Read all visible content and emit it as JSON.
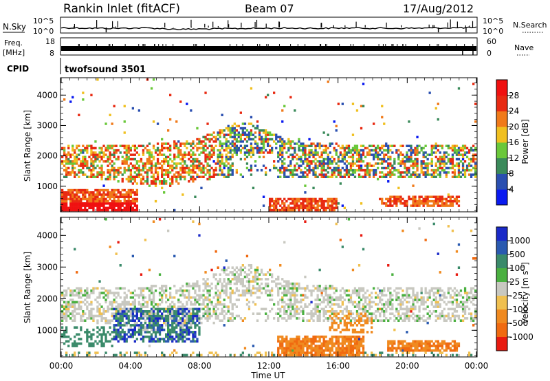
{
  "header": {
    "station": "Rankin Inlet (fitACF)",
    "beam": "Beam 07",
    "date": "17/Aug/2012"
  },
  "noise_panel": {
    "left_label": "N.Sky",
    "right_label": "N.Search",
    "left_ticks": [
      "10^5",
      "10^0"
    ],
    "right_ticks": [
      "10^5",
      "10^0"
    ]
  },
  "freq_panel": {
    "left_label_1": "Freq.",
    "left_label_2": "[MHz]",
    "right_label": "Nave",
    "left_ticks": [
      "18",
      "8"
    ],
    "right_ticks": [
      "60",
      "0"
    ]
  },
  "cpid_panel": {
    "label": "CPID",
    "value": "twofsound 3501"
  },
  "power_panel": {
    "ylabel": "Slant Range [km]",
    "yticks": [
      "1000",
      "2000",
      "3000",
      "4000"
    ],
    "colorbar_label": "Power [dB]",
    "colorbar_ticks": [
      "4",
      "8",
      "12",
      "16",
      "20",
      "24",
      "28"
    ],
    "colors": [
      "#0a1af0",
      "#2a4fb0",
      "#3a8a5a",
      "#6ac83a",
      "#f0c020",
      "#f07a1a",
      "#e82a12",
      "#f01010"
    ]
  },
  "velocity_panel": {
    "ylabel": "Slant Range [km]",
    "yticks": [
      "1000",
      "2000",
      "3000",
      "4000"
    ],
    "colorbar_label": "Velocity [m s",
    "colorbar_label_sup": "-1",
    "colorbar_label_end": "]",
    "colorbar_ticks": [
      "1000",
      "500",
      "100",
      "25",
      "-25",
      "-100",
      "-500",
      "-1000"
    ],
    "colors": [
      "#1a2ac8",
      "#2a5ab0",
      "#3a8a6a",
      "#4ab040",
      "#c8c8c0",
      "#f0c050",
      "#f08a20",
      "#f06a10",
      "#e81a10"
    ]
  },
  "time_axis": {
    "label": "Time UT",
    "ticks": [
      "00:00",
      "04:00",
      "08:00",
      "12:00",
      "16:00",
      "20:00",
      "00:00"
    ]
  },
  "chart_data": [
    {
      "type": "line",
      "title": "N.Sky / N.Search",
      "y_scale": "log",
      "ylim": [
        1,
        100000
      ],
      "x_hours": [
        0,
        1,
        2,
        3,
        4,
        5,
        6,
        7,
        8,
        9,
        10,
        11,
        12,
        13,
        14,
        15,
        16,
        17,
        18,
        19,
        20,
        21,
        22,
        23,
        24
      ],
      "series": [
        {
          "name": "N.Sky",
          "values": [
            30,
            25,
            20,
            18,
            22,
            25,
            12,
            8,
            10,
            12,
            15,
            18,
            20,
            22,
            20,
            18,
            22,
            25,
            20,
            18,
            20,
            22,
            25,
            30,
            35
          ]
        }
      ]
    },
    {
      "type": "line",
      "title": "Freq. / Nave",
      "ylim": [
        8,
        18
      ],
      "x_hours": [
        0,
        24
      ],
      "series": [
        {
          "name": "Freq.",
          "values": [
            10.5,
            10.5
          ]
        }
      ]
    },
    {
      "type": "heatmap",
      "title": "Power [dB]",
      "x_range_hours": [
        0,
        24
      ],
      "y_range_km": [
        180,
        4500
      ],
      "value_range": [
        0,
        30
      ],
      "colorbar_ticks": [
        4,
        8,
        12,
        16,
        20,
        24,
        28
      ]
    },
    {
      "type": "heatmap",
      "title": "Velocity [m s-1]",
      "x_range_hours": [
        0,
        24
      ],
      "y_range_km": [
        180,
        4500
      ],
      "colorbar_ticks": [
        1000,
        500,
        100,
        25,
        -25,
        -100,
        -500,
        -1000
      ]
    }
  ]
}
